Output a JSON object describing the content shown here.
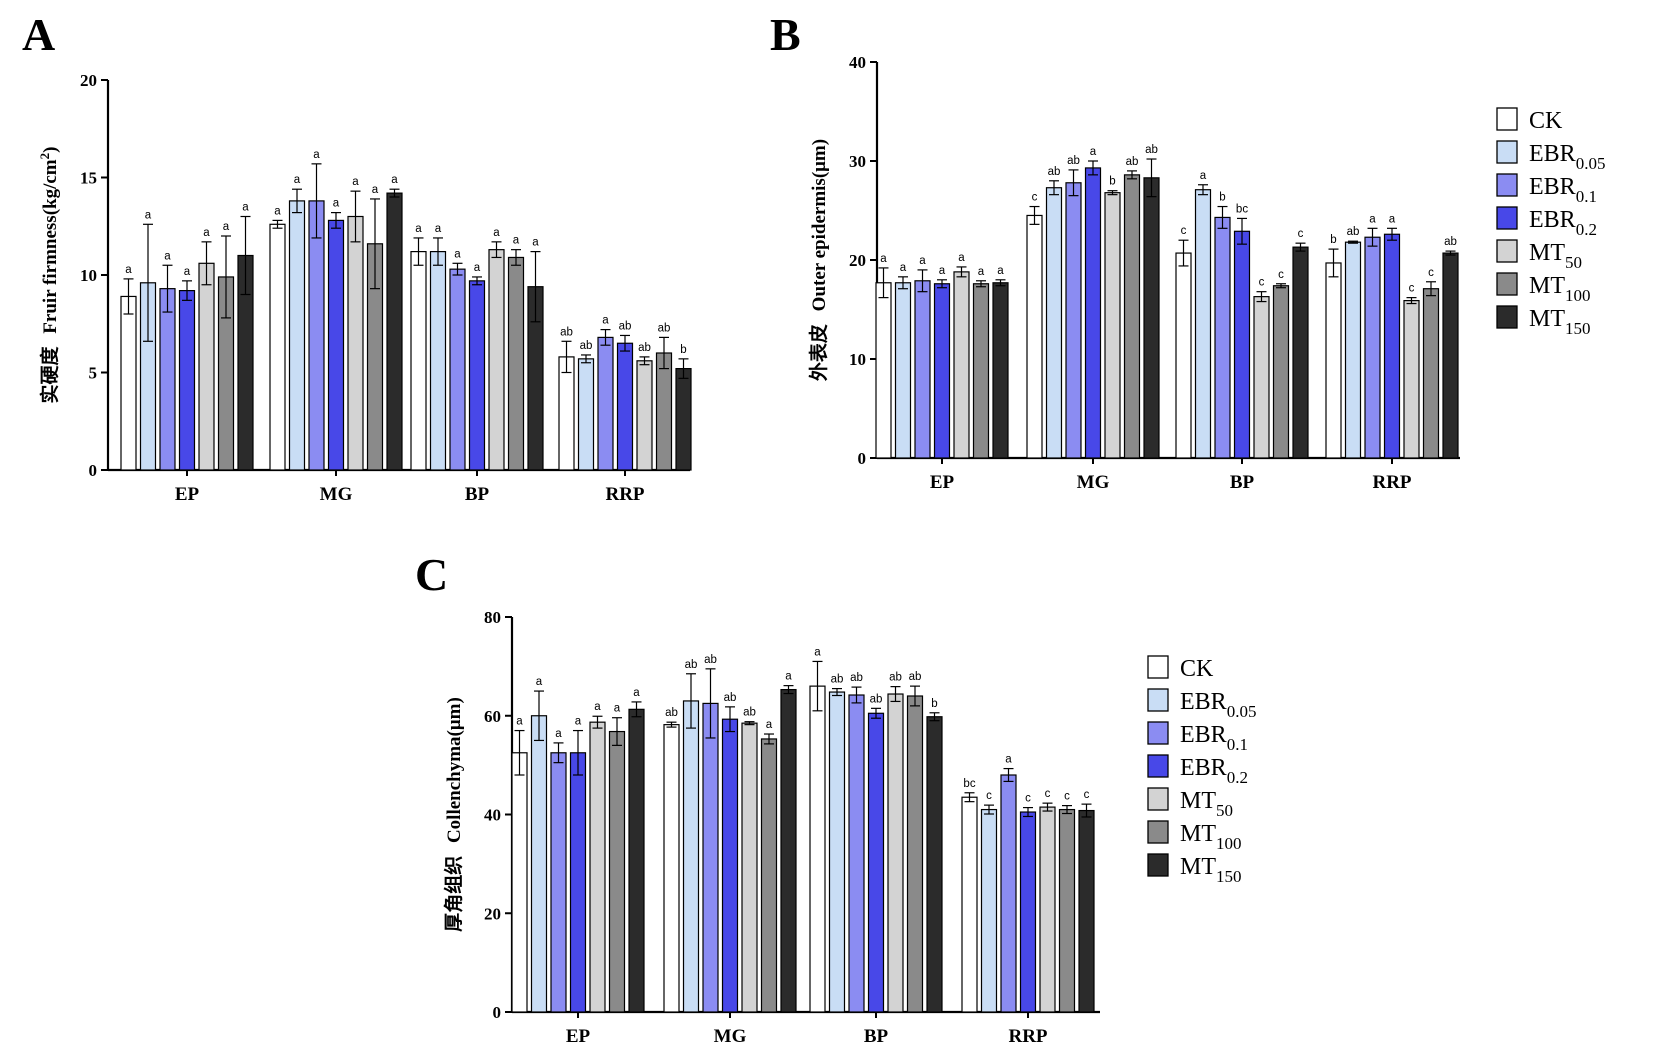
{
  "legend": {
    "entries": [
      {
        "base": "CK",
        "sub": "",
        "color": "#ffffff"
      },
      {
        "base": "EBR",
        "sub": "0.05",
        "color": "#c9ddf5"
      },
      {
        "base": "EBR",
        "sub": "0.1",
        "color": "#8b8cf2"
      },
      {
        "base": "EBR",
        "sub": "0.2",
        "color": "#4848e8"
      },
      {
        "base": "MT",
        "sub": "50",
        "color": "#d3d3d3"
      },
      {
        "base": "MT",
        "sub": "100",
        "color": "#8a8a8a"
      },
      {
        "base": "MT",
        "sub": "150",
        "color": "#2b2b2b"
      }
    ]
  },
  "chart_data": [
    {
      "panel": "A",
      "type": "bar",
      "ylabel_cn": "实硬度",
      "ylabel_en": "Fruir firmness(kg/cm",
      "ylabel_sup": "2",
      "ylabel_end": ")",
      "ylim": [
        0,
        20
      ],
      "yticks": [
        0,
        5,
        10,
        15,
        20
      ],
      "categories": [
        "EP",
        "MG",
        "BP",
        "RRP"
      ],
      "series": [
        {
          "name": "CK",
          "values": [
            8.9,
            12.6,
            11.2,
            5.8
          ],
          "errors": [
            0.9,
            0.2,
            0.7,
            0.8
          ],
          "letters": [
            "a",
            "a",
            "a",
            "ab"
          ]
        },
        {
          "name": "EBR0.05",
          "values": [
            9.6,
            13.8,
            11.2,
            5.7
          ],
          "errors": [
            3.0,
            0.6,
            0.7,
            0.2
          ],
          "letters": [
            "a",
            "a",
            "a",
            "ab"
          ]
        },
        {
          "name": "EBR0.1",
          "values": [
            9.3,
            13.8,
            10.3,
            6.8
          ],
          "errors": [
            1.2,
            1.9,
            0.3,
            0.4
          ],
          "letters": [
            "a",
            "a",
            "a",
            "a"
          ]
        },
        {
          "name": "EBR0.2",
          "values": [
            9.2,
            12.8,
            9.7,
            6.5
          ],
          "errors": [
            0.5,
            0.4,
            0.2,
            0.4
          ],
          "letters": [
            "a",
            "a",
            "a",
            "ab"
          ]
        },
        {
          "name": "MT50",
          "values": [
            10.6,
            13.0,
            11.3,
            5.6
          ],
          "errors": [
            1.1,
            1.3,
            0.4,
            0.2
          ],
          "letters": [
            "a",
            "a",
            "a",
            "ab"
          ]
        },
        {
          "name": "MT100",
          "values": [
            9.9,
            11.6,
            10.9,
            6.0
          ],
          "errors": [
            2.1,
            2.3,
            0.4,
            0.8
          ],
          "letters": [
            "a",
            "a",
            "a",
            "ab"
          ]
        },
        {
          "name": "MT150",
          "values": [
            11.0,
            14.2,
            9.4,
            5.2
          ],
          "errors": [
            2.0,
            0.2,
            1.8,
            0.5
          ],
          "letters": [
            "a",
            "a",
            "a",
            "b"
          ]
        }
      ]
    },
    {
      "panel": "B",
      "type": "bar",
      "ylabel_cn": "外表皮",
      "ylabel_en": "Outer epidermis(μm)",
      "ylim": [
        0,
        40
      ],
      "yticks": [
        0,
        10,
        20,
        30,
        40
      ],
      "categories": [
        "EP",
        "MG",
        "BP",
        "RRP"
      ],
      "series": [
        {
          "name": "CK",
          "values": [
            17.7,
            24.5,
            20.7,
            19.7
          ],
          "errors": [
            1.5,
            0.9,
            1.3,
            1.4
          ],
          "letters": [
            "a",
            "c",
            "c",
            "b"
          ]
        },
        {
          "name": "EBR0.05",
          "values": [
            17.7,
            27.3,
            27.1,
            21.8
          ],
          "errors": [
            0.6,
            0.7,
            0.5,
            0.1
          ],
          "letters": [
            "a",
            "ab",
            "a",
            "ab"
          ]
        },
        {
          "name": "EBR0.1",
          "values": [
            17.9,
            27.8,
            24.3,
            22.3
          ],
          "errors": [
            1.1,
            1.3,
            1.1,
            0.9
          ],
          "letters": [
            "a",
            "ab",
            "b",
            "a"
          ]
        },
        {
          "name": "EBR0.2",
          "values": [
            17.6,
            29.3,
            22.9,
            22.6
          ],
          "errors": [
            0.4,
            0.7,
            1.3,
            0.6
          ],
          "letters": [
            "a",
            "a",
            "bc",
            "a"
          ]
        },
        {
          "name": "MT50",
          "values": [
            18.8,
            26.8,
            16.3,
            15.9
          ],
          "errors": [
            0.5,
            0.2,
            0.5,
            0.3
          ],
          "letters": [
            "a",
            "b",
            "c",
            "c"
          ]
        },
        {
          "name": "MT100",
          "values": [
            17.6,
            28.6,
            17.4,
            17.1
          ],
          "errors": [
            0.3,
            0.4,
            0.2,
            0.7
          ],
          "letters": [
            "a",
            "ab",
            "c",
            "c"
          ]
        },
        {
          "name": "MT150",
          "values": [
            17.7,
            28.3,
            21.3,
            20.7
          ],
          "errors": [
            0.3,
            1.9,
            0.4,
            0.2
          ],
          "letters": [
            "a",
            "ab",
            "c",
            "ab"
          ]
        }
      ]
    },
    {
      "panel": "C",
      "type": "bar",
      "ylabel_cn": "厚角组织",
      "ylabel_en": "Collenchyma(μm)",
      "ylim": [
        0,
        80
      ],
      "yticks": [
        0,
        20,
        40,
        60,
        80
      ],
      "categories": [
        "EP",
        "MG",
        "BP",
        "RRP"
      ],
      "series": [
        {
          "name": "CK",
          "values": [
            52.5,
            58.2,
            66.0,
            43.5
          ],
          "errors": [
            4.5,
            0.5,
            5.0,
            0.9
          ],
          "letters": [
            "a",
            "ab",
            "a",
            "bc"
          ]
        },
        {
          "name": "EBR0.05",
          "values": [
            60.0,
            63.0,
            64.8,
            41.0
          ],
          "errors": [
            5.0,
            5.5,
            0.7,
            0.9
          ],
          "letters": [
            "a",
            "ab",
            "ab",
            "c"
          ]
        },
        {
          "name": "EBR0.1",
          "values": [
            52.5,
            62.5,
            64.2,
            48.0
          ],
          "errors": [
            2.0,
            7.0,
            1.6,
            1.3
          ],
          "letters": [
            "a",
            "ab",
            "ab",
            "a"
          ]
        },
        {
          "name": "EBR0.2",
          "values": [
            52.5,
            59.3,
            60.5,
            40.5
          ],
          "errors": [
            4.5,
            2.5,
            1.0,
            0.9
          ],
          "letters": [
            "a",
            "ab",
            "ab",
            "c"
          ]
        },
        {
          "name": "MT50",
          "values": [
            58.7,
            58.5,
            64.4,
            41.5
          ],
          "errors": [
            1.2,
            0.3,
            1.5,
            0.8
          ],
          "letters": [
            "a",
            "ab",
            "ab",
            "c"
          ]
        },
        {
          "name": "MT100",
          "values": [
            56.8,
            55.3,
            64.0,
            41.0
          ],
          "errors": [
            2.8,
            1.0,
            2.0,
            0.8
          ],
          "letters": [
            "a",
            "a",
            "ab",
            "c"
          ]
        },
        {
          "name": "MT150",
          "values": [
            61.3,
            65.3,
            59.8,
            40.8
          ],
          "errors": [
            1.5,
            0.8,
            0.8,
            1.3
          ],
          "letters": [
            "a",
            "a",
            "b",
            "c"
          ]
        }
      ]
    }
  ]
}
